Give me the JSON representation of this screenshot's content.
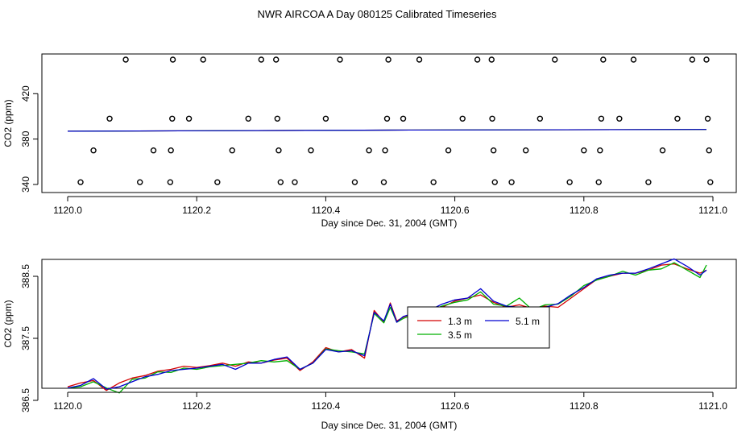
{
  "title": "NWR AIRCOA A  Day 080125  Calibrated Timeseries",
  "colors": {
    "h1_3": "#d40000",
    "h3_5": "#00b000",
    "h5_1": "#0000d0",
    "axis": "#000000"
  },
  "chart_data": [
    {
      "type": "scatter",
      "xlabel": "Day since Dec. 31, 2004 (GMT)",
      "ylabel": "CO2 (ppm)",
      "xlim": [
        1120.0,
        1121.0
      ],
      "ylim": [
        338,
        450
      ],
      "xticks": [
        {
          "value": 1120.0,
          "label": "1120.0"
        },
        {
          "value": 1120.2,
          "label": "1120.2"
        },
        {
          "value": 1120.4,
          "label": "1120.4"
        },
        {
          "value": 1120.6,
          "label": "1120.6"
        },
        {
          "value": 1120.8,
          "label": "1120.8"
        },
        {
          "value": 1121.0,
          "label": "1121.0"
        }
      ],
      "yticks": [
        {
          "value": 340,
          "label": "340"
        },
        {
          "value": 380,
          "label": "380"
        },
        {
          "value": 420,
          "label": "420"
        }
      ],
      "grid": false,
      "points": [
        [
          1120.02,
          342
        ],
        [
          1120.04,
          370
        ],
        [
          1120.065,
          398
        ],
        [
          1120.09,
          450
        ],
        [
          1120.112,
          342
        ],
        [
          1120.133,
          370
        ],
        [
          1120.159,
          342
        ],
        [
          1120.16,
          370
        ],
        [
          1120.162,
          398
        ],
        [
          1120.163,
          450
        ],
        [
          1120.188,
          398
        ],
        [
          1120.21,
          450
        ],
        [
          1120.232,
          342
        ],
        [
          1120.255,
          370
        ],
        [
          1120.28,
          398
        ],
        [
          1120.3,
          450
        ],
        [
          1120.323,
          450
        ],
        [
          1120.325,
          398
        ],
        [
          1120.327,
          370
        ],
        [
          1120.33,
          342
        ],
        [
          1120.352,
          342
        ],
        [
          1120.377,
          370
        ],
        [
          1120.4,
          398
        ],
        [
          1120.422,
          450
        ],
        [
          1120.445,
          342
        ],
        [
          1120.467,
          370
        ],
        [
          1120.49,
          342
        ],
        [
          1120.492,
          370
        ],
        [
          1120.495,
          398
        ],
        [
          1120.497,
          450
        ],
        [
          1120.52,
          398
        ],
        [
          1120.545,
          450
        ],
        [
          1120.567,
          342
        ],
        [
          1120.59,
          370
        ],
        [
          1120.612,
          398
        ],
        [
          1120.635,
          450
        ],
        [
          1120.657,
          450
        ],
        [
          1120.658,
          398
        ],
        [
          1120.66,
          370
        ],
        [
          1120.662,
          342
        ],
        [
          1120.688,
          342
        ],
        [
          1120.71,
          370
        ],
        [
          1120.732,
          398
        ],
        [
          1120.755,
          450
        ],
        [
          1120.778,
          342
        ],
        [
          1120.8,
          370
        ],
        [
          1120.823,
          342
        ],
        [
          1120.825,
          370
        ],
        [
          1120.827,
          398
        ],
        [
          1120.83,
          450
        ],
        [
          1120.855,
          398
        ],
        [
          1120.877,
          450
        ],
        [
          1120.9,
          342
        ],
        [
          1120.922,
          370
        ],
        [
          1120.945,
          398
        ],
        [
          1120.968,
          450
        ],
        [
          1120.99,
          450
        ],
        [
          1120.992,
          398
        ],
        [
          1120.994,
          370
        ],
        [
          1120.996,
          342
        ]
      ],
      "series": [
        {
          "x": [
            1120.0,
            1120.5,
            1120.99
          ],
          "values": [
            386.9,
            387.9,
            388.5
          ]
        },
        {
          "x": [
            1120.0,
            1120.5,
            1120.99
          ],
          "values": [
            386.9,
            387.9,
            388.5
          ]
        },
        {
          "x": [
            1120.0,
            1120.5,
            1120.99
          ],
          "values": [
            386.9,
            387.9,
            388.5
          ]
        }
      ]
    },
    {
      "type": "line",
      "xlabel": "Day since Dec. 31, 2004 (GMT)",
      "ylabel": "CO2 (ppm)",
      "xlim": [
        1120.0,
        1121.0
      ],
      "ylim": [
        386.5,
        388.8
      ],
      "xticks": [
        {
          "value": 1120.0,
          "label": "1120.0"
        },
        {
          "value": 1120.2,
          "label": "1120.2"
        },
        {
          "value": 1120.4,
          "label": "1120.4"
        },
        {
          "value": 1120.6,
          "label": "1120.6"
        },
        {
          "value": 1120.8,
          "label": "1120.8"
        },
        {
          "value": 1121.0,
          "label": "1121.0"
        }
      ],
      "yticks": [
        {
          "value": 386.5,
          "label": "386.5"
        },
        {
          "value": 387.5,
          "label": "387.5"
        },
        {
          "value": 388.5,
          "label": "388.5"
        }
      ],
      "grid": false,
      "legend": "center",
      "x": [
        1120.0,
        1120.02,
        1120.04,
        1120.06,
        1120.08,
        1120.1,
        1120.12,
        1120.14,
        1120.16,
        1120.18,
        1120.2,
        1120.22,
        1120.24,
        1120.26,
        1120.28,
        1120.3,
        1120.32,
        1120.34,
        1120.36,
        1120.38,
        1120.4,
        1120.42,
        1120.44,
        1120.46,
        1120.475,
        1120.49,
        1120.5,
        1120.51,
        1120.52,
        1120.54,
        1120.56,
        1120.58,
        1120.6,
        1120.62,
        1120.64,
        1120.66,
        1120.68,
        1120.7,
        1120.72,
        1120.74,
        1120.76,
        1120.78,
        1120.8,
        1120.82,
        1120.84,
        1120.86,
        1120.88,
        1120.9,
        1120.92,
        1120.94,
        1120.96,
        1120.98,
        1120.99
      ],
      "series": [
        {
          "name": "1.3 m",
          "color": "#d40000",
          "values": [
            386.72,
            386.78,
            386.82,
            386.66,
            386.78,
            386.86,
            386.9,
            386.97,
            387.0,
            387.05,
            387.03,
            387.06,
            387.1,
            387.05,
            387.12,
            387.1,
            387.15,
            387.18,
            386.98,
            387.12,
            387.35,
            387.28,
            387.32,
            387.18,
            387.95,
            387.76,
            388.07,
            387.78,
            387.84,
            387.92,
            387.9,
            388.0,
            388.1,
            388.15,
            388.2,
            388.08,
            388.0,
            388.04,
            387.98,
            388.02,
            388.0,
            388.15,
            388.3,
            388.45,
            388.5,
            388.55,
            388.55,
            388.6,
            388.68,
            388.7,
            388.62,
            388.55,
            388.6
          ]
        },
        {
          "name": "3.5 m",
          "color": "#00b000",
          "values": [
            386.7,
            386.72,
            386.8,
            386.7,
            386.62,
            386.84,
            386.86,
            386.96,
            386.95,
            387.02,
            387.0,
            387.04,
            387.06,
            387.08,
            387.1,
            387.14,
            387.12,
            387.14,
            387.0,
            387.1,
            387.33,
            387.3,
            387.28,
            387.25,
            387.9,
            387.75,
            388.0,
            387.76,
            387.82,
            387.9,
            387.93,
            388.02,
            388.08,
            388.12,
            388.25,
            388.05,
            388.02,
            388.15,
            387.96,
            388.04,
            388.05,
            388.18,
            388.35,
            388.44,
            388.5,
            388.58,
            388.52,
            388.6,
            388.62,
            388.72,
            388.6,
            388.48,
            388.68
          ]
        },
        {
          "name": "5.1 m",
          "color": "#0000d0",
          "values": [
            386.7,
            386.74,
            386.85,
            386.68,
            386.72,
            386.8,
            386.88,
            386.92,
            386.98,
            387.0,
            387.02,
            387.05,
            387.08,
            387.0,
            387.1,
            387.1,
            387.16,
            387.2,
            387.0,
            387.1,
            387.32,
            387.28,
            387.3,
            387.22,
            387.92,
            387.78,
            388.05,
            387.76,
            387.85,
            387.92,
            387.95,
            388.05,
            388.12,
            388.15,
            388.3,
            388.1,
            388.02,
            388.0,
            387.95,
            388.0,
            388.06,
            388.2,
            388.32,
            388.46,
            388.52,
            388.55,
            388.55,
            388.62,
            388.7,
            388.78,
            388.66,
            388.52,
            388.6
          ]
        }
      ]
    }
  ]
}
